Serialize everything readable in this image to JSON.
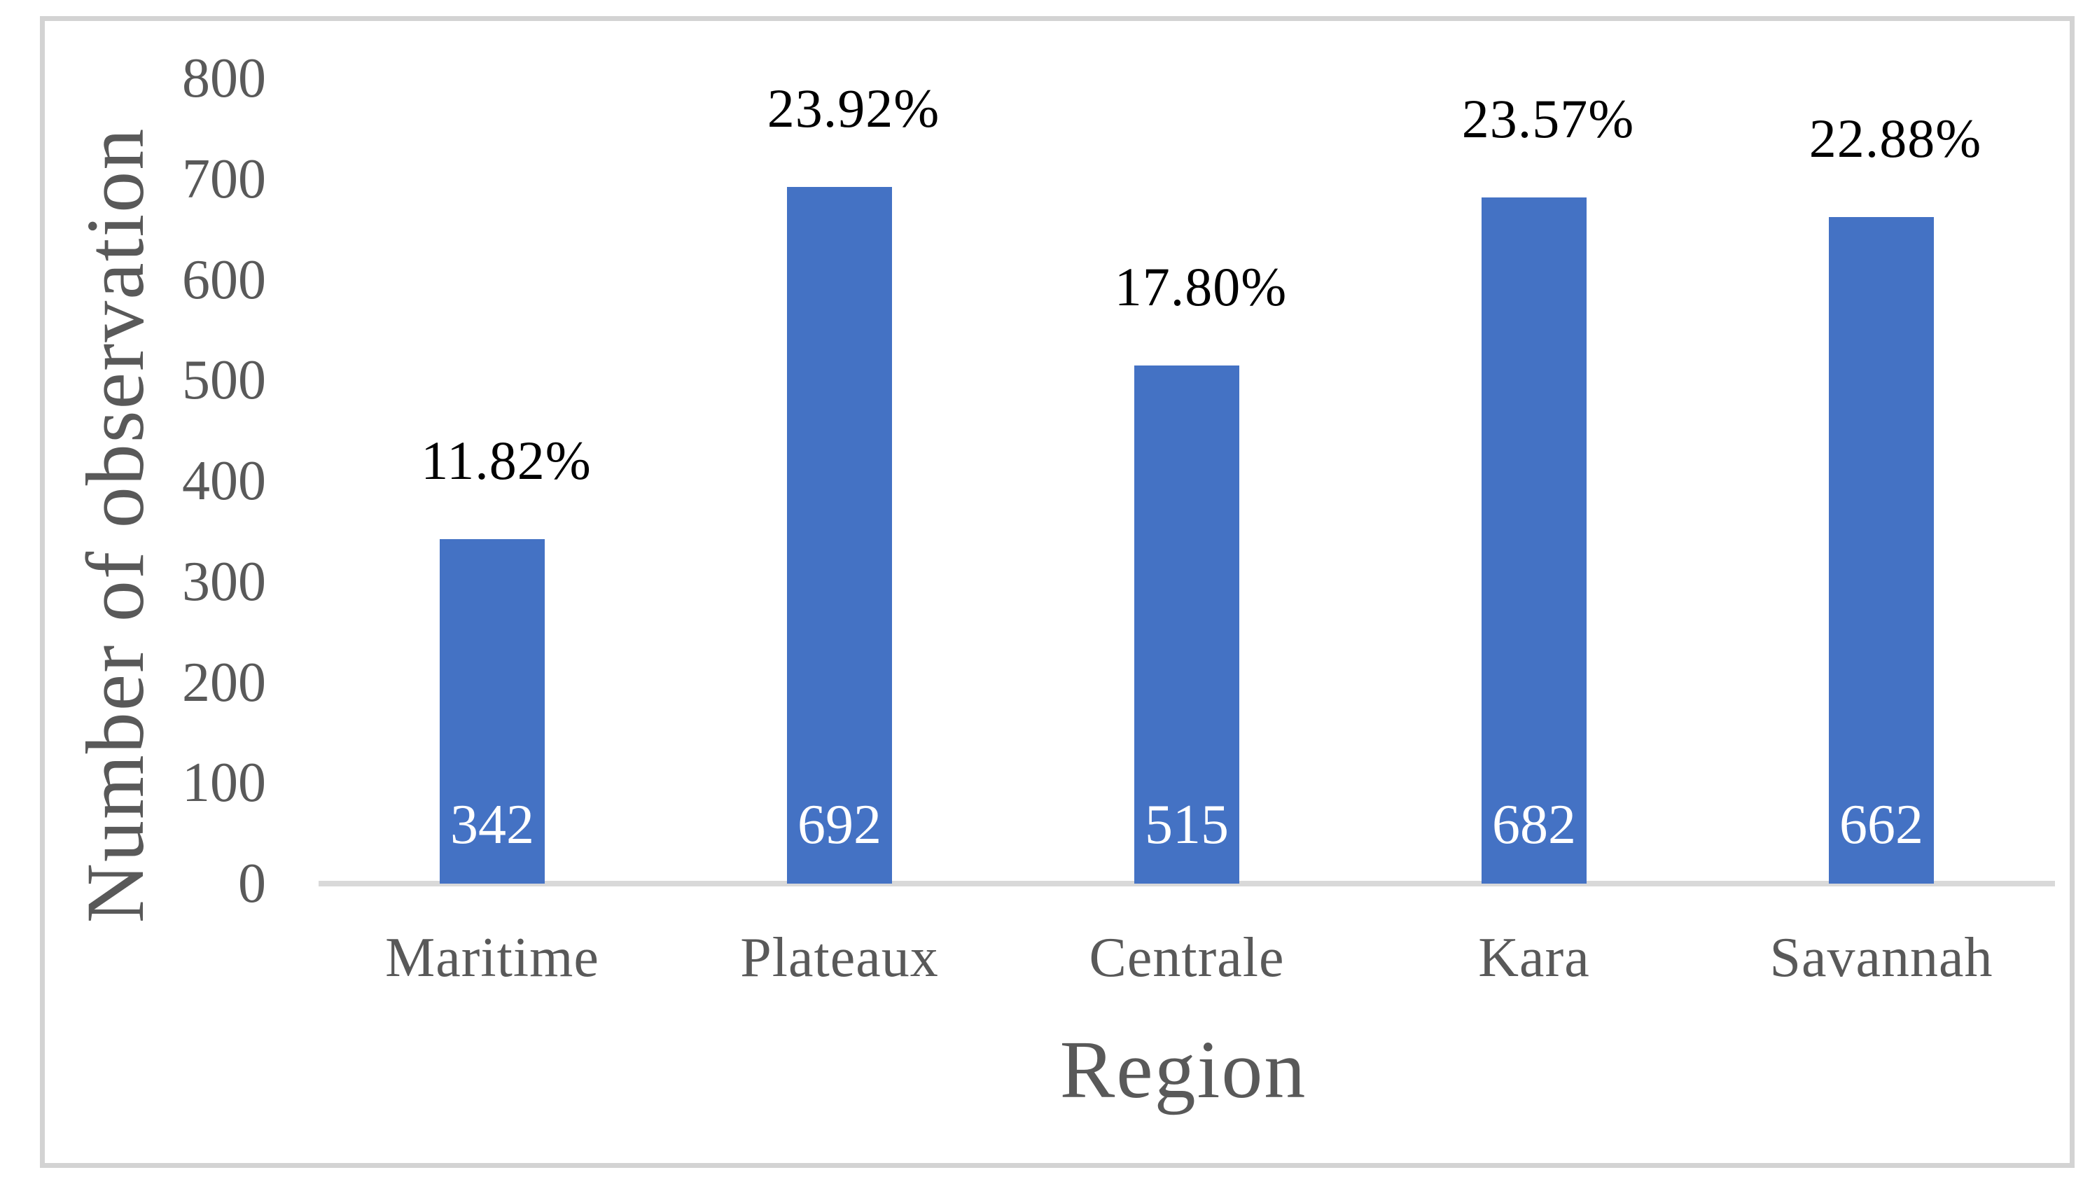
{
  "chart_data": {
    "type": "bar",
    "title": "",
    "xlabel": "Region",
    "ylabel": "Number of observation",
    "categories": [
      "Maritime",
      "Plateaux",
      "Centrale",
      "Kara",
      "Savannah"
    ],
    "values": [
      342,
      692,
      515,
      682,
      662
    ],
    "bar_value_labels": [
      "342",
      "692",
      "515",
      "682",
      "662"
    ],
    "percent_labels": [
      "11.82%",
      "23.92%",
      "17.80%",
      "23.57%",
      "22.88%"
    ],
    "ylim": [
      0,
      800
    ],
    "yticks": [
      0,
      100,
      200,
      300,
      400,
      500,
      600,
      700,
      800
    ],
    "grid": false,
    "legend": false,
    "colors": {
      "bar": "#4472C4",
      "axis_line": "#D9D9D9",
      "tick_text": "#595959",
      "axis_title_text": "#595959",
      "percent_text": "#000000",
      "bar_value_text": "#FFFFFF",
      "figure_border": "#D3D3D3",
      "background": "#FFFFFF"
    }
  }
}
